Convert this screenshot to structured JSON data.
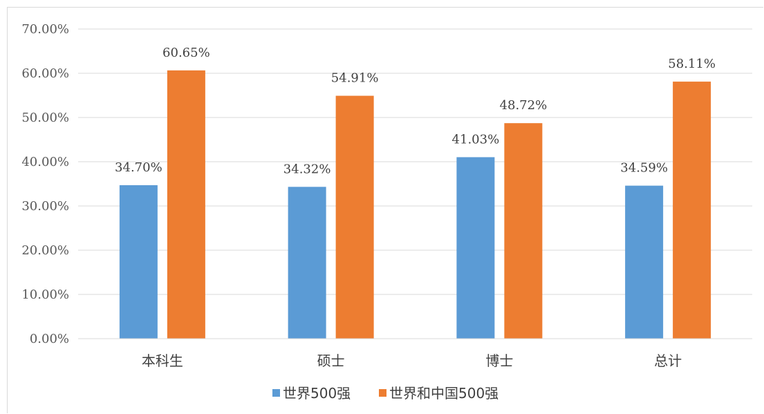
{
  "chart_data": {
    "type": "bar",
    "categories": [
      "本科生",
      "硕士",
      "博士",
      "总计"
    ],
    "series": [
      {
        "name": "世界500强",
        "color": "#5b9bd5",
        "values": [
          34.7,
          34.32,
          41.03,
          34.59
        ],
        "labels": [
          "34.70%",
          "34.32%",
          "41.03%",
          "34.59%"
        ]
      },
      {
        "name": "世界和中国500强",
        "color": "#ed7d31",
        "values": [
          60.65,
          54.91,
          48.72,
          58.11
        ],
        "labels": [
          "60.65%",
          "54.91%",
          "48.72%",
          "58.11%"
        ]
      }
    ],
    "ylim": [
      0,
      70
    ],
    "yticks": [
      0,
      10,
      20,
      30,
      40,
      50,
      60,
      70
    ],
    "ytick_labels": [
      "0.00%",
      "10.00%",
      "20.00%",
      "30.00%",
      "40.00%",
      "50.00%",
      "60.00%",
      "70.00%"
    ],
    "title": "",
    "xlabel": "",
    "ylabel": "",
    "grid": true,
    "legend_position": "bottom",
    "gridline_color": "#d9d9d9"
  }
}
